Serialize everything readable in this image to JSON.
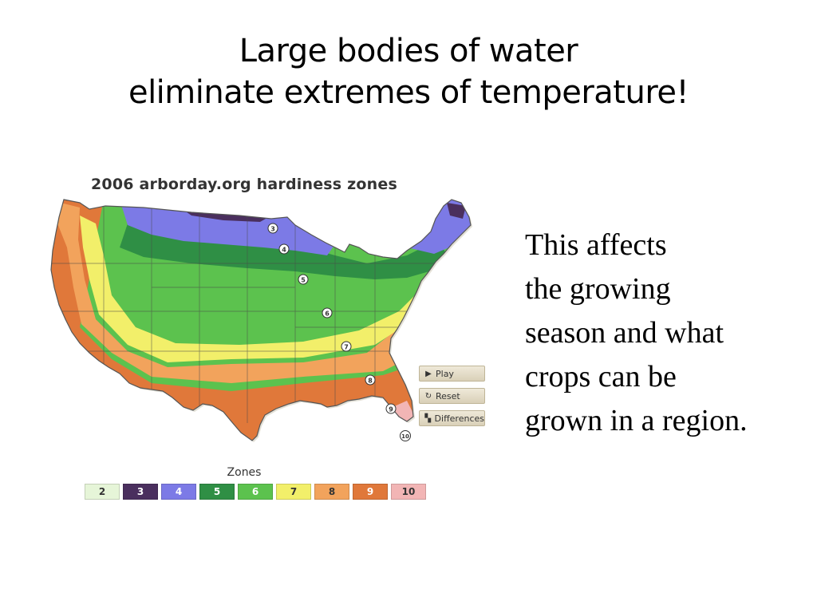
{
  "slide": {
    "title_lines": [
      "Large bodies of water",
      "eliminate extremes of temperature!"
    ],
    "body_lines": [
      "This affects",
      "the growing",
      "season and what",
      "crops can be",
      "grown in a region."
    ]
  },
  "map": {
    "title": "2006 arborday.org hardiness zones",
    "markers": [
      "3",
      "4",
      "5",
      "6",
      "7",
      "8",
      "9",
      "10"
    ],
    "controls": [
      {
        "label": "Play",
        "icon": "play-icon"
      },
      {
        "label": "Reset",
        "icon": "reset-icon"
      },
      {
        "label": "Differences",
        "icon": "differences-icon"
      }
    ],
    "legend": {
      "title": "Zones",
      "zones": [
        {
          "label": "2",
          "color": "#e6f5d8",
          "text_color": "#333333"
        },
        {
          "label": "3",
          "color": "#4a2f5e",
          "text_color": "#ffffff"
        },
        {
          "label": "4",
          "color": "#7c7ae6",
          "text_color": "#ffffff"
        },
        {
          "label": "5",
          "color": "#2f8f45",
          "text_color": "#ffffff"
        },
        {
          "label": "6",
          "color": "#5cc24e",
          "text_color": "#ffffff"
        },
        {
          "label": "7",
          "color": "#f2ef6a",
          "text_color": "#333333"
        },
        {
          "label": "8",
          "color": "#f2a35c",
          "text_color": "#333333"
        },
        {
          "label": "9",
          "color": "#e0783a",
          "text_color": "#ffffff"
        },
        {
          "label": "10",
          "color": "#f2b5b5",
          "text_color": "#333333"
        }
      ]
    }
  }
}
